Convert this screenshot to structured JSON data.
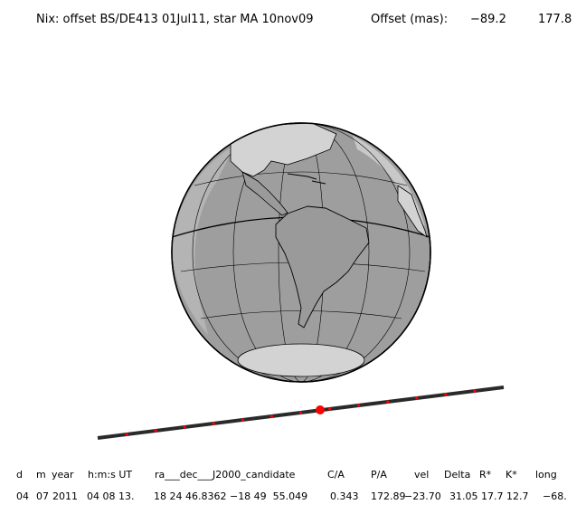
{
  "header": {
    "title": "Nix: offset BS/DE413 01Jul11, star MA 10nov09",
    "offset_label": "Offset (mas):",
    "offset_x": "−89.2",
    "offset_y": "177.8"
  },
  "table": {
    "headers": [
      "d",
      "m",
      "year",
      "h:m:s UT",
      "ra___dec___J2000_candidate",
      "C/A",
      "P/A",
      "vel",
      "Delta",
      "R*",
      "K*",
      "long"
    ],
    "values": [
      "04",
      "07",
      "2011",
      "04 08 13.",
      "18 24 46.8362 −18 49  55.049",
      "0.343",
      "172.89",
      "−23.70",
      "31.05",
      "17.7",
      "12.7",
      "−68."
    ]
  },
  "colors": {
    "ocean": "#a0a0a0",
    "land_night": "#8c8c8c",
    "land_day": "#d0d0d0",
    "track": "#2a2a2a",
    "track_marks": "#ff0000",
    "target_dot": "#ff0000"
  }
}
